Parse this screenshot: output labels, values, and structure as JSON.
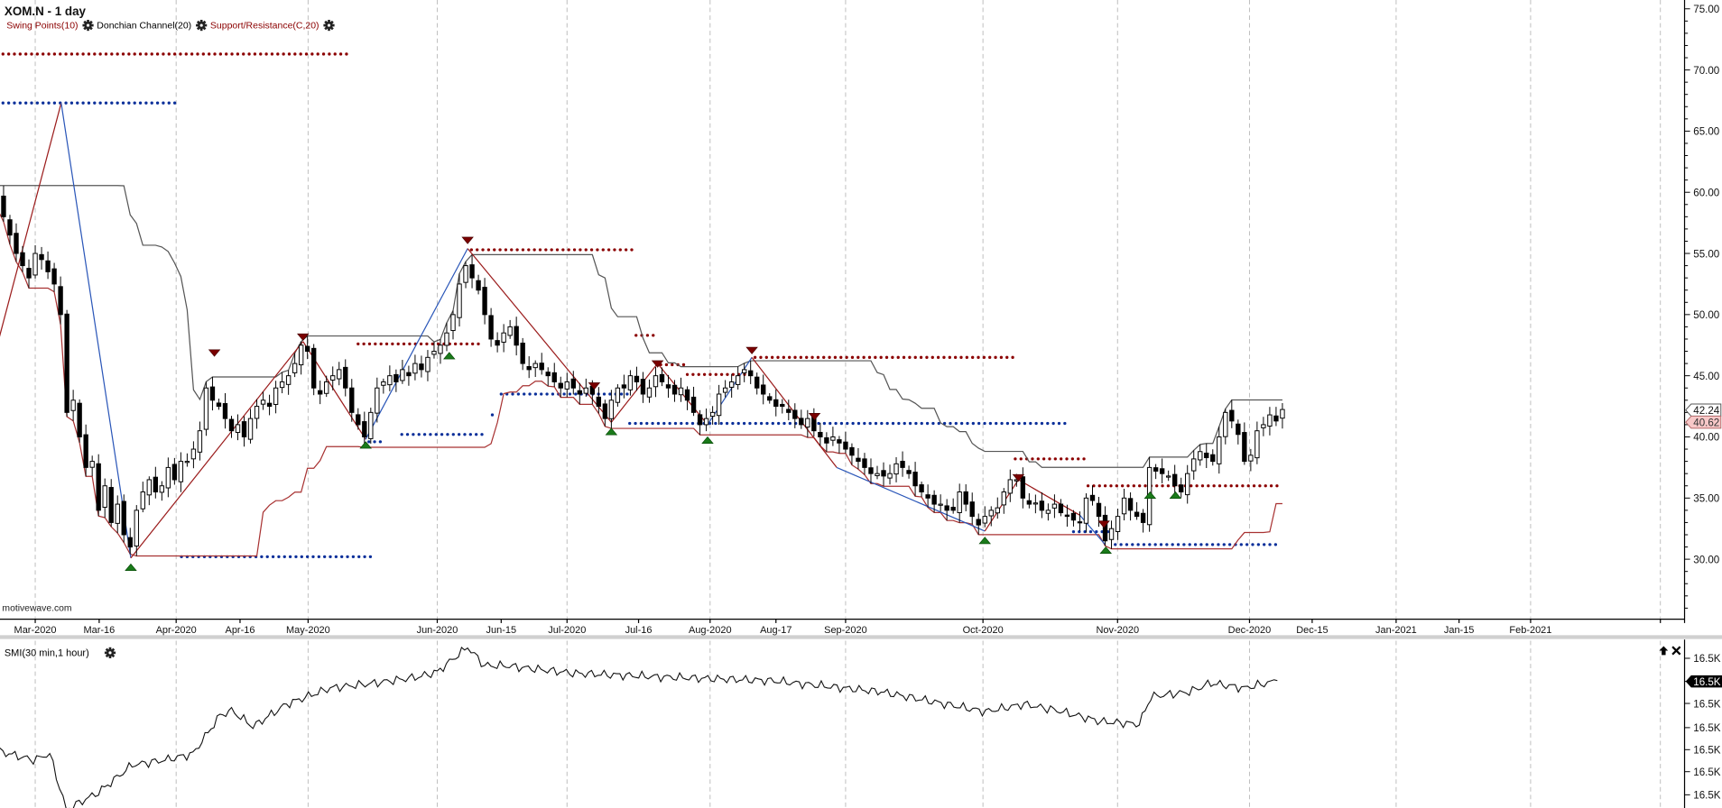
{
  "header": {
    "title": "XOM.N - 1 day",
    "legend": [
      {
        "label": "Swing Points(10)",
        "color": "#8b0000"
      },
      {
        "label": "Donchian Channel(20)",
        "color": "#000000"
      },
      {
        "label": "Support/Resistance(C,20)",
        "color": "#8b0000"
      }
    ],
    "watermark": "motivewave.com"
  },
  "colors": {
    "resistance": "#8b0000",
    "support": "#0a2f9a",
    "swing_up_leg": "#9b1c1c",
    "swing_down_leg": "#2a56b8",
    "donchian_upper": "#555555",
    "donchian_lower": "#a83232",
    "swing_high_marker": "#7a0000",
    "swing_low_marker": "#1a7a1a",
    "last_price_badge": "#ffffff",
    "prev_price_badge": "#f8c8c8"
  },
  "chart_data": [
    {
      "type": "candlestick",
      "title": "XOM.N - 1 day",
      "ylim": [
        25.5,
        75.8
      ],
      "y_ticks": [
        {
          "value": 75,
          "label": "75.00"
        },
        {
          "value": 70,
          "label": "70.00"
        },
        {
          "value": 65,
          "label": "65.00"
        },
        {
          "value": 60,
          "label": "60.00"
        },
        {
          "value": 55,
          "label": "55.00"
        },
        {
          "value": 50,
          "label": "50.00"
        },
        {
          "value": 45,
          "label": "45.00"
        },
        {
          "value": 40,
          "label": "40.00"
        },
        {
          "value": 35,
          "label": "35.00"
        },
        {
          "value": 30,
          "label": "30.00"
        }
      ],
      "x_ticks": [
        {
          "bar": 6,
          "label": "Mar-2020",
          "grid": true
        },
        {
          "bar": 16.1,
          "label": "Mar-16",
          "grid": false
        },
        {
          "bar": 28.26,
          "label": "Apr-2020",
          "grid": true
        },
        {
          "bar": 38.35,
          "label": "Apr-16",
          "grid": false
        },
        {
          "bar": 49.1,
          "label": "May-2020",
          "grid": true
        },
        {
          "bar": 69.5,
          "label": "Jun-2020",
          "grid": true
        },
        {
          "bar": 79.6,
          "label": "Jun-15",
          "grid": false
        },
        {
          "bar": 90,
          "label": "Jul-2020",
          "grid": true
        },
        {
          "bar": 101.3,
          "label": "Jul-16",
          "grid": false
        },
        {
          "bar": 112.6,
          "label": "Aug-2020",
          "grid": true
        },
        {
          "bar": 123,
          "label": "Aug-17",
          "grid": false
        },
        {
          "bar": 134,
          "label": "Sep-2020",
          "grid": true
        },
        {
          "bar": 155.7,
          "label": "Oct-2020",
          "grid": true
        },
        {
          "bar": 176.96,
          "label": "Nov-2020",
          "grid": true
        },
        {
          "bar": 197.8,
          "label": "Dec-2020",
          "grid": true
        },
        {
          "bar": 207.7,
          "label": "Dec-15",
          "grid": false
        },
        {
          "bar": 220.96,
          "label": "Jan-2021",
          "grid": true
        },
        {
          "bar": 230.9,
          "label": "Jan-15",
          "grid": false
        },
        {
          "bar": 242.2,
          "label": "Feb-2021",
          "grid": true
        },
        {
          "bar": 262.7,
          "label": "",
          "grid": true
        }
      ],
      "closes": [
        59.5,
        58,
        56.5,
        55,
        54,
        53,
        55,
        54.5,
        53.5,
        52.5,
        50,
        42,
        43,
        40,
        37.5,
        38,
        34,
        36,
        33,
        34.5,
        32,
        31,
        34,
        35.5,
        36.5,
        35.5,
        36,
        37.5,
        36.5,
        38,
        38,
        39,
        40.5,
        44,
        43,
        42.5,
        41.5,
        40.5,
        41,
        40,
        41.5,
        42.5,
        43,
        42.5,
        44,
        44.5,
        45,
        46,
        47.5,
        47,
        44,
        43.5,
        44.5,
        45,
        45.5,
        44,
        42,
        41,
        40,
        42,
        44,
        44.5,
        45,
        44.5,
        45.5,
        45,
        46,
        45.5,
        46.5,
        47,
        47.5,
        48.5,
        50,
        52.5,
        54,
        53,
        52,
        50,
        48,
        47.5,
        48.5,
        49,
        47.5,
        46,
        45.5,
        46,
        45.5,
        45,
        44.5,
        44,
        44.5,
        44,
        43.5,
        44,
        43.5,
        42.5,
        41.5,
        43,
        44,
        44,
        45,
        44.5,
        43.5,
        44,
        45,
        44.5,
        44,
        43.5,
        44,
        43,
        42,
        41,
        41.5,
        42,
        43.5,
        44,
        44.5,
        45,
        45.5,
        45,
        44,
        43.5,
        43,
        42.5,
        42.5,
        42,
        41.5,
        41,
        41.5,
        40.5,
        40,
        39.5,
        40,
        39.5,
        39,
        38.5,
        38,
        37.5,
        37,
        37,
        36.8,
        37,
        37.8,
        37.5,
        37,
        36,
        35.5,
        35,
        34.5,
        34.5,
        34,
        34,
        35.5,
        34.5,
        33.5,
        32.8,
        33.5,
        34,
        34.2,
        35.5,
        36.5,
        36.5,
        35,
        34.5,
        34.6,
        34,
        34,
        34.5,
        33.8,
        33.5,
        33.2,
        33,
        35,
        34.8,
        33.5,
        31.5,
        32.5,
        33.5,
        35,
        34,
        33.5,
        33,
        37.5,
        37.2,
        37,
        36.8,
        36,
        35.5,
        37,
        38.2,
        38.8,
        38.3,
        38,
        40,
        42,
        41.3,
        40.2,
        38,
        38.5,
        40.5,
        41,
        41.8,
        41.3,
        42.24
      ],
      "donchian_period": 20,
      "last_price": {
        "value": 42.24,
        "label": "42.24"
      },
      "prev_price": {
        "value": 40.62,
        "label": "40.62"
      },
      "swing_legs": [
        {
          "from": [
            0,
            47.5
          ],
          "to": [
            10.1,
            67.3
          ],
          "dir": "up"
        },
        {
          "from": [
            10.1,
            67.3
          ],
          "to": [
            21.1,
            30.1
          ],
          "dir": "down"
        },
        {
          "from": [
            21.1,
            30.1
          ],
          "to": [
            48.3,
            47.8
          ],
          "dir": "up"
        },
        {
          "from": [
            48.3,
            47.8
          ],
          "to": [
            58.2,
            39.8
          ],
          "dir": "up"
        },
        {
          "from": [
            58.2,
            39.8
          ],
          "to": [
            74.3,
            55.4
          ],
          "dir": "down"
        },
        {
          "from": [
            74.3,
            55.4
          ],
          "to": [
            97,
            41.2
          ],
          "dir": "up"
        },
        {
          "from": [
            97,
            41.2
          ],
          "to": [
            104.3,
            46
          ],
          "dir": "up"
        },
        {
          "from": [
            104.3,
            46
          ],
          "to": [
            112.2,
            41
          ],
          "dir": "up"
        },
        {
          "from": [
            112.2,
            41
          ],
          "to": [
            119.2,
            46.5
          ],
          "dir": "down"
        },
        {
          "from": [
            119.2,
            46.5
          ],
          "to": [
            132.6,
            37.5
          ],
          "dir": "up"
        },
        {
          "from": [
            132.6,
            37.5
          ],
          "to": [
            156,
            32.3
          ],
          "dir": "down"
        },
        {
          "from": [
            156,
            32.3
          ],
          "to": [
            161.3,
            36.5
          ],
          "dir": "up"
        },
        {
          "from": [
            161.3,
            36.5
          ],
          "to": [
            171,
            33.6
          ],
          "dir": "up"
        },
        {
          "from": [
            171,
            33.6
          ],
          "to": [
            175,
            31.2
          ],
          "dir": "down"
        }
      ],
      "swing_highs": [
        [
          34.3,
          46.5
        ],
        [
          48.3,
          47.8
        ],
        [
          74.3,
          55.7
        ],
        [
          94.3,
          43.8
        ],
        [
          104.3,
          45.6
        ],
        [
          119.2,
          46.7
        ],
        [
          129.1,
          41.3
        ],
        [
          161.3,
          36.3
        ],
        [
          174.8,
          32.5
        ]
      ],
      "swing_lows": [
        [
          21.1,
          29.7
        ],
        [
          58.2,
          39.7
        ],
        [
          71.4,
          47
        ],
        [
          97,
          40.8
        ],
        [
          112.2,
          40.1
        ],
        [
          156,
          31.9
        ],
        [
          175.1,
          31.1
        ],
        [
          182.1,
          35.6
        ],
        [
          186.1,
          35.6
        ]
      ],
      "resistance_levels": [
        {
          "price": 71.3,
          "from": 0,
          "to": 56
        },
        {
          "price": 47.6,
          "from": 57,
          "to": 76.4
        },
        {
          "price": 55.3,
          "from": 74.9,
          "to": 100.4
        },
        {
          "price": 48.3,
          "from": 100.9,
          "to": 104.3
        },
        {
          "price": 45.9,
          "from": 104.8,
          "to": 108.6
        },
        {
          "price": 45.1,
          "from": 109,
          "to": 119
        },
        {
          "price": 46.5,
          "from": 119.7,
          "to": 160.4
        },
        {
          "price": 38.2,
          "from": 160.8,
          "to": 171.7
        },
        {
          "price": 36.0,
          "from": 172.3,
          "to": 202.5
        }
      ],
      "support_levels": [
        {
          "price": 67.3,
          "from": 0,
          "to": 28.3
        },
        {
          "price": 30.2,
          "from": 29.1,
          "to": 59.6
        },
        {
          "price": 39.6,
          "from": 58.7,
          "to": 61.3
        },
        {
          "price": 40.2,
          "from": 63.9,
          "to": 77.3
        },
        {
          "price": 41.8,
          "from": 78.2,
          "to": 79.1
        },
        {
          "price": 43.5,
          "from": 79.6,
          "to": 100.4
        },
        {
          "price": 41.1,
          "from": 99.9,
          "to": 169.5
        },
        {
          "price": 32.25,
          "from": 170,
          "to": 176.1
        },
        {
          "price": 31.2,
          "from": 176.6,
          "to": 202.5
        }
      ]
    },
    {
      "type": "line",
      "title": "SMI(30 min,1 hour)",
      "y_ticks": [
        "16.5K",
        "16.5K",
        "16.5K",
        "16.5K",
        "16.5K",
        "16.5K",
        "16.5K"
      ],
      "last_value_label": "16.5K",
      "ylim": [
        16445,
        16555
      ],
      "points": [
        [
          0.4,
          16480
        ],
        [
          5.7,
          16473
        ],
        [
          8.3,
          16478
        ],
        [
          10.9,
          16433
        ],
        [
          16,
          16447
        ],
        [
          21.3,
          16469
        ],
        [
          26.5,
          16473
        ],
        [
          30.9,
          16478
        ],
        [
          35.2,
          16509
        ],
        [
          37,
          16513
        ],
        [
          40.4,
          16500
        ],
        [
          45.7,
          16518
        ],
        [
          52.6,
          16531
        ],
        [
          59.6,
          16535
        ],
        [
          66.5,
          16540
        ],
        [
          69.5,
          16544
        ],
        [
          74.3,
          16564
        ],
        [
          77,
          16549
        ],
        [
          80.4,
          16549
        ],
        [
          90.9,
          16543
        ],
        [
          104.8,
          16540
        ],
        [
          122.2,
          16537
        ],
        [
          139.6,
          16528
        ],
        [
          156.1,
          16512
        ],
        [
          162.2,
          16518
        ],
        [
          167.4,
          16513
        ],
        [
          174.3,
          16504
        ],
        [
          180.4,
          16502
        ],
        [
          182.2,
          16524
        ],
        [
          188.3,
          16528
        ],
        [
          191.7,
          16535
        ],
        [
          197,
          16531
        ],
        [
          202.2,
          16537
        ]
      ]
    }
  ]
}
